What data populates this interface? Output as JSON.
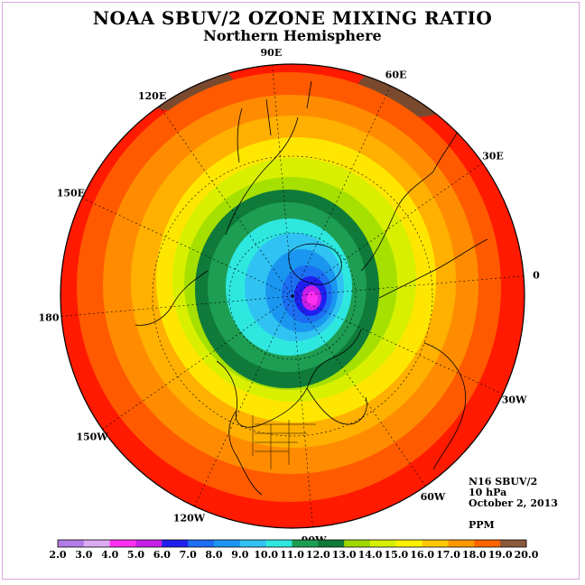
{
  "title": "NOAA SBUV/2 OZONE MIXING RATIO",
  "subtitle": "Northern Hemisphere",
  "info": {
    "instrument": "N16 SBUV/2",
    "level": "10 hPa",
    "date": "October 2, 2013",
    "units": "PPM"
  },
  "longitude_labels": [
    {
      "text": "90E",
      "lon": 90
    },
    {
      "text": "60E",
      "lon": 60
    },
    {
      "text": "30E",
      "lon": 30
    },
    {
      "text": "0",
      "lon": 0
    },
    {
      "text": "30W",
      "lon": -30
    },
    {
      "text": "60W",
      "lon": -60
    },
    {
      "text": "90W",
      "lon": -90
    },
    {
      "text": "120W",
      "lon": -120
    },
    {
      "text": "150W",
      "lon": -150
    },
    {
      "text": "180",
      "lon": 180
    },
    {
      "text": "150E",
      "lon": 150
    },
    {
      "text": "120E",
      "lon": 120
    }
  ],
  "colorbar": {
    "labels": [
      "2.0",
      "3.0",
      "4.0",
      "5.0",
      "6.0",
      "7.0",
      "8.0",
      "9.0",
      "10.0",
      "11.0",
      "12.0",
      "13.0",
      "14.0",
      "15.0",
      "16.0",
      "17.0",
      "18.0",
      "19.0",
      "20.0"
    ],
    "colors": [
      "#b27ce8",
      "#dcaaf0",
      "#ff2ef0",
      "#c81ee8",
      "#1f1ff0",
      "#1c6ef2",
      "#1a96f0",
      "#30c2f2",
      "#2ee8e0",
      "#1e9e52",
      "#0f7a3a",
      "#9ed800",
      "#d6f000",
      "#fff200",
      "#ffc800",
      "#ff9800",
      "#ff6400",
      "#ff0000",
      "#8a5a3c"
    ]
  },
  "map_colors": {
    "outer_red": "#ff1a00",
    "brown": "#7a4a2e",
    "dark_orange": "#ff5a00",
    "orange": "#ff8c00",
    "light_orange": "#ffb000",
    "yellow": "#ffe600",
    "yellow_green": "#d8f000",
    "light_green": "#a6e000",
    "dark_green": "#0f7a3a",
    "green": "#1e9e52",
    "cyan": "#2ee8e0",
    "light_blue": "#30c2f2",
    "mid_blue": "#1a96f0",
    "blue": "#1c6ef2",
    "deep_blue": "#1f1ff0",
    "purple": "#c81ee8",
    "magenta": "#ff2ef0"
  }
}
